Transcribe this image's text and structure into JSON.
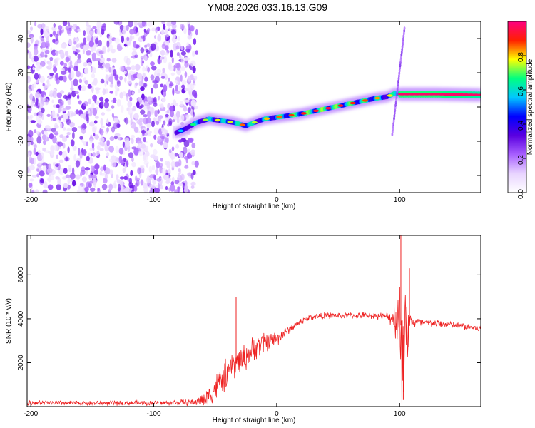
{
  "title": "YM08.2026.033.16.13.G09",
  "chart_data": [
    {
      "type": "heatmap",
      "panel": "spectrogram",
      "xlabel": "Height of straight line (km)",
      "ylabel": "Frequency (Hz)",
      "xlim": [
        -203,
        166
      ],
      "ylim": [
        -50,
        50
      ],
      "xticks": [
        -200,
        -100,
        0,
        100
      ],
      "yticks": [
        -40,
        -20,
        0,
        20,
        40
      ],
      "colorbar": {
        "label": "Normalized spectral amplitude",
        "range": [
          0,
          1
        ],
        "ticks": [
          "0.0",
          "0.2",
          "0.4",
          "0.6",
          "0.8"
        ],
        "colors": [
          "#ffffff",
          "#e8d4ff",
          "#a860ff",
          "#5a00e0",
          "#0000ff",
          "#00c8ff",
          "#00ff80",
          "#ffff00",
          "#ff2000",
          "#ff0080"
        ]
      },
      "noise_region_x": [
        -203,
        -65
      ],
      "ridge": {
        "x": [
          -82,
          -75,
          -65,
          -55,
          -45,
          -35,
          -25,
          -18,
          -10,
          0,
          20,
          40,
          60,
          80,
          90,
          96,
          100,
          130,
          166
        ],
        "y": [
          -15,
          -13,
          -9,
          -7,
          -8,
          -9,
          -11,
          -9,
          -7,
          -6,
          -4,
          -1,
          2,
          5,
          6,
          8,
          7.5,
          7.5,
          7
        ],
        "amplitude": [
          0.35,
          0.45,
          0.55,
          0.6,
          0.62,
          0.6,
          0.75,
          0.6,
          0.65,
          0.7,
          0.75,
          0.8,
          0.75,
          0.7,
          0.6,
          0.7,
          0.9,
          0.9,
          0.85
        ]
      },
      "spike": {
        "x": [
          94,
          104
        ],
        "y": [
          -16,
          46
        ]
      }
    },
    {
      "type": "line",
      "panel": "snr",
      "xlabel": "Height of straight line (km)",
      "ylabel": "SNR (10 * v/v)",
      "xlim": [
        -203,
        166
      ],
      "ylim": [
        0,
        7800
      ],
      "xticks": [
        -200,
        -100,
        0,
        100
      ],
      "yticks": [
        2000,
        4000,
        6000
      ],
      "series": [
        {
          "color": "#ee2222",
          "x": [
            -203,
            -180,
            -150,
            -120,
            -90,
            -65,
            -57,
            -50,
            -45,
            -40,
            -35,
            -30,
            -25,
            -20,
            -15,
            -10,
            -5,
            0,
            5,
            10,
            15,
            20,
            30,
            40,
            60,
            80,
            90,
            95,
            98,
            100,
            102,
            104,
            106,
            108,
            110,
            120,
            140,
            166
          ],
          "y": [
            170,
            160,
            150,
            160,
            170,
            200,
            400,
            800,
            1200,
            1500,
            1900,
            2100,
            2300,
            2500,
            2800,
            2950,
            3050,
            3100,
            3300,
            3500,
            3700,
            3900,
            4100,
            4150,
            4150,
            4150,
            4100,
            4050,
            4000,
            3900,
            3500,
            3000,
            3700,
            3800,
            3850,
            3800,
            3750,
            3550
          ],
          "noise": [
            110,
            110,
            110,
            110,
            110,
            160,
            450,
            600,
            700,
            700,
            650,
            650,
            600,
            600,
            550,
            500,
            450,
            350,
            250,
            180,
            160,
            150,
            140,
            140,
            140,
            140,
            180,
            500,
            1400,
            2700,
            3500,
            3000,
            1900,
            900,
            300,
            180,
            160,
            170
          ]
        }
      ],
      "spikes": [
        {
          "x": -33,
          "y": 5000
        },
        {
          "x": 101,
          "y": 7800
        },
        {
          "x": 103,
          "y": 300
        },
        {
          "x": 108,
          "y": 6300
        }
      ]
    }
  ]
}
